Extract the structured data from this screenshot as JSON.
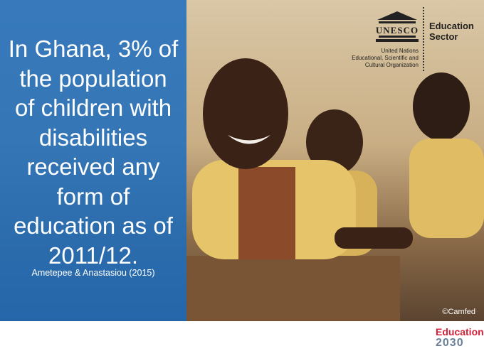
{
  "statement": {
    "lines": [
      "In Ghana, 3% of",
      "the population",
      "of children with",
      "disabilities",
      "received any",
      "form of",
      "education as of",
      "2011/12."
    ]
  },
  "citation": "Ametepee & Anastasiou (2015)",
  "logo": {
    "acronym": "UNESCO",
    "sector": [
      "Education",
      "Sector"
    ],
    "organization": [
      "United Nations",
      "Educational, Scientific and",
      "Cultural Organization"
    ]
  },
  "credit": "©Camfed",
  "footer_logo": {
    "word": "Education",
    "year": "2030"
  }
}
